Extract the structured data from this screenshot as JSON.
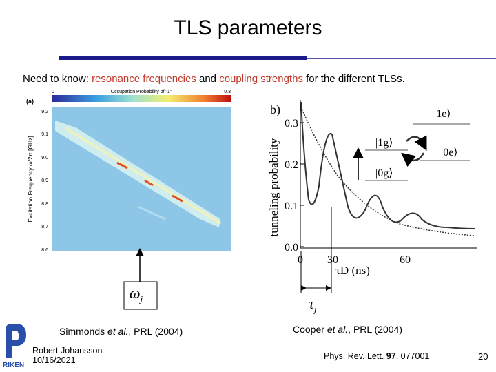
{
  "header": {
    "title": "TLS parameters"
  },
  "intro": {
    "prefix": "Need to know:",
    "highlight1": "resonance frequencies",
    "middle": "and",
    "highlight2": "coupling strengths",
    "suffix": "for the different TLSs."
  },
  "figure_a": {
    "panel_label": "(a)",
    "colorbar_min": "0",
    "colorbar_title": "Occupation Probability of \"1\"",
    "colorbar_max": "0.3",
    "y_axis_label": "Excitation Frequency ω/2π [GHz]",
    "yticks": [
      "9.2",
      "9.1",
      "9.0",
      "8.9",
      "8.8",
      "8.7",
      "8.6"
    ]
  },
  "figure_b": {
    "panel_label": "b)",
    "y_axis_label": "tunneling probability",
    "yticks": [
      "0.3",
      "0.2",
      "0.1",
      "0.0"
    ],
    "xticks": [
      "0",
      "30",
      "60"
    ],
    "x_axis_label": "τD (ns)",
    "states": [
      "|1e⟩",
      "|1g⟩",
      "|0e⟩",
      "|0g⟩"
    ]
  },
  "symbols": {
    "omega": {
      "symbol": "ω",
      "sub": "j"
    },
    "tau": {
      "symbol": "τ",
      "sub": "j"
    }
  },
  "citations": [
    {
      "author": "Simmonds",
      "etal": "et al.",
      "rest": ", PRL (2004)"
    },
    {
      "author": "Cooper",
      "etal": "et al.",
      "rest": ", PRL (2004)"
    }
  ],
  "footer": {
    "logo": "RIKEN",
    "author": "Robert Johansson",
    "date": "10/16/2021",
    "journal": "Phys. Rev. Lett.",
    "volume": "97",
    "article": ", 077001",
    "page": "20"
  }
}
